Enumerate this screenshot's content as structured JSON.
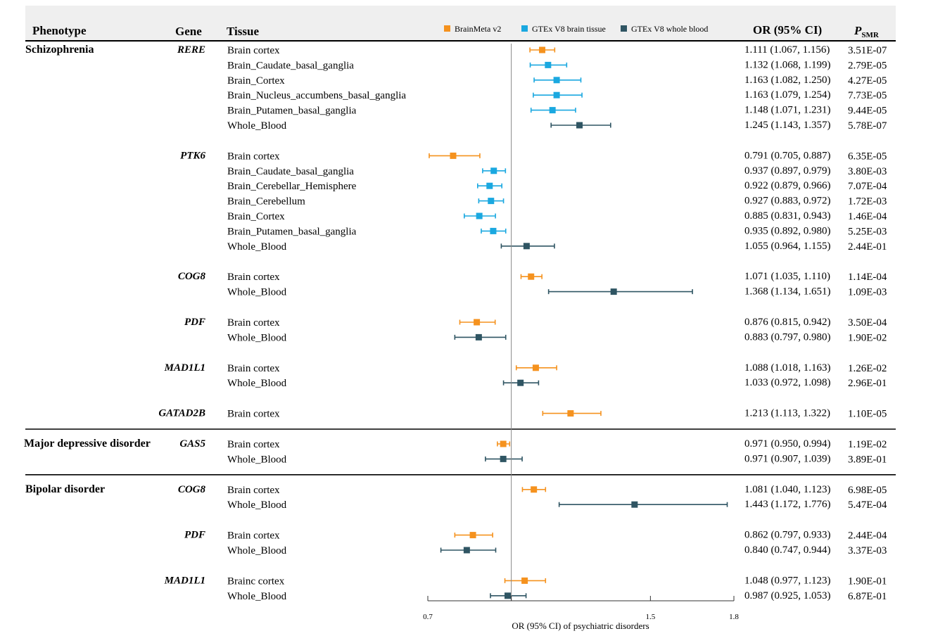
{
  "headers": {
    "phenotype": "Phenotype",
    "gene": "Gene",
    "tissue": "Tissue",
    "or": "OR (95% CI)",
    "p_main": "P",
    "p_sub": "SMR"
  },
  "legend": [
    {
      "name": "BrainMeta v2",
      "color": "#f5921e"
    },
    {
      "name": "GTEx V8 brain tissue",
      "color": "#1aa8e0"
    },
    {
      "name": "GTEx V8 whole blood",
      "color": "#2f5563"
    }
  ],
  "chart_data": {
    "type": "forest",
    "xlabel": "OR (95% CI) of psychiatric disorders",
    "xticks": [
      0.7,
      1,
      1.5,
      1.8
    ],
    "xtick_labels": [
      "0.7",
      "",
      "1.5",
      "1.8"
    ],
    "xlim": [
      0.7,
      1.8
    ],
    "reference_line": 1,
    "groups": [
      {
        "phenotype": "Schizophrenia",
        "genes": [
          {
            "gene": "RERE",
            "rows": [
              {
                "tissue": "Brain cortex",
                "source": 0,
                "or": 1.111,
                "lo": 1.067,
                "hi": 1.156,
                "or_text": "1.111 (1.067, 1.156)",
                "p": "3.51E-07"
              },
              {
                "tissue": "Brain_Caudate_basal_ganglia",
                "source": 1,
                "or": 1.132,
                "lo": 1.068,
                "hi": 1.199,
                "or_text": "1.132 (1.068, 1.199)",
                "p": "2.79E-05"
              },
              {
                "tissue": "Brain_Cortex",
                "source": 1,
                "or": 1.163,
                "lo": 1.082,
                "hi": 1.25,
                "or_text": "1.163 (1.082, 1.250)",
                "p": "4.27E-05"
              },
              {
                "tissue": "Brain_Nucleus_accumbens_basal_ganglia",
                "source": 1,
                "or": 1.163,
                "lo": 1.079,
                "hi": 1.254,
                "or_text": "1.163 (1.079, 1.254)",
                "p": "7.73E-05"
              },
              {
                "tissue": "Brain_Putamen_basal_ganglia",
                "source": 1,
                "or": 1.148,
                "lo": 1.071,
                "hi": 1.231,
                "or_text": "1.148 (1.071, 1.231)",
                "p": "9.44E-05"
              },
              {
                "tissue": "Whole_Blood",
                "source": 2,
                "or": 1.245,
                "lo": 1.143,
                "hi": 1.357,
                "or_text": "1.245 (1.143, 1.357)",
                "p": "5.78E-07"
              }
            ]
          },
          {
            "gene": "PTK6",
            "rows": [
              {
                "tissue": "Brain cortex",
                "source": 0,
                "or": 0.791,
                "lo": 0.705,
                "hi": 0.887,
                "or_text": "0.791 (0.705, 0.887)",
                "p": "6.35E-05"
              },
              {
                "tissue": "Brain_Caudate_basal_ganglia",
                "source": 1,
                "or": 0.937,
                "lo": 0.897,
                "hi": 0.979,
                "or_text": "0.937 (0.897, 0.979)",
                "p": "3.80E-03"
              },
              {
                "tissue": "Brain_Cerebellar_Hemisphere",
                "source": 1,
                "or": 0.922,
                "lo": 0.879,
                "hi": 0.966,
                "or_text": "0.922 (0.879, 0.966)",
                "p": "7.07E-04"
              },
              {
                "tissue": "Brain_Cerebellum",
                "source": 1,
                "or": 0.927,
                "lo": 0.883,
                "hi": 0.972,
                "or_text": "0.927 (0.883, 0.972)",
                "p": "1.72E-03"
              },
              {
                "tissue": "Brain_Cortex",
                "source": 1,
                "or": 0.885,
                "lo": 0.831,
                "hi": 0.943,
                "or_text": "0.885 (0.831, 0.943)",
                "p": "1.46E-04"
              },
              {
                "tissue": "Brain_Putamen_basal_ganglia",
                "source": 1,
                "or": 0.935,
                "lo": 0.892,
                "hi": 0.98,
                "or_text": "0.935 (0.892, 0.980)",
                "p": "5.25E-03"
              },
              {
                "tissue": "Whole_Blood",
                "source": 2,
                "or": 1.055,
                "lo": 0.964,
                "hi": 1.155,
                "or_text": "1.055 (0.964, 1.155)",
                "p": "2.44E-01"
              }
            ]
          },
          {
            "gene": "COG8",
            "rows": [
              {
                "tissue": "Brain cortex",
                "source": 0,
                "or": 1.071,
                "lo": 1.035,
                "hi": 1.11,
                "or_text": "1.071 (1.035, 1.110)",
                "p": "1.14E-04"
              },
              {
                "tissue": "Whole_Blood",
                "source": 2,
                "or": 1.368,
                "lo": 1.134,
                "hi": 1.651,
                "or_text": "1.368 (1.134, 1.651)",
                "p": "1.09E-03"
              }
            ]
          },
          {
            "gene": "PDF",
            "rows": [
              {
                "tissue": "Brain cortex",
                "source": 0,
                "or": 0.876,
                "lo": 0.815,
                "hi": 0.942,
                "or_text": "0.876 (0.815, 0.942)",
                "p": "3.50E-04"
              },
              {
                "tissue": "Whole_Blood",
                "source": 2,
                "or": 0.883,
                "lo": 0.797,
                "hi": 0.98,
                "or_text": "0.883 (0.797, 0.980)",
                "p": "1.90E-02"
              }
            ]
          },
          {
            "gene": "MAD1L1",
            "rows": [
              {
                "tissue": "Brain cortex",
                "source": 0,
                "or": 1.088,
                "lo": 1.018,
                "hi": 1.163,
                "or_text": "1.088 (1.018, 1.163)",
                "p": "1.26E-02"
              },
              {
                "tissue": "Whole_Blood",
                "source": 2,
                "or": 1.033,
                "lo": 0.972,
                "hi": 1.098,
                "or_text": "1.033 (0.972, 1.098)",
                "p": "2.96E-01"
              }
            ]
          },
          {
            "gene": "GATAD2B",
            "rows": [
              {
                "tissue": "Brain cortex",
                "source": 0,
                "or": 1.213,
                "lo": 1.113,
                "hi": 1.322,
                "or_text": "1.213 (1.113, 1.322)",
                "p": "1.10E-05"
              }
            ]
          }
        ]
      },
      {
        "phenotype": "Major depressive disorder",
        "genes": [
          {
            "gene": "GAS5",
            "rows": [
              {
                "tissue": "Brain cortex",
                "source": 0,
                "or": 0.971,
                "lo": 0.95,
                "hi": 0.994,
                "or_text": "0.971 (0.950, 0.994)",
                "p": "1.19E-02"
              },
              {
                "tissue": "Whole_Blood",
                "source": 2,
                "or": 0.971,
                "lo": 0.907,
                "hi": 1.039,
                "or_text": "0.971 (0.907, 1.039)",
                "p": "3.89E-01"
              }
            ]
          }
        ]
      },
      {
        "phenotype": "Bipolar disorder",
        "genes": [
          {
            "gene": "COG8",
            "rows": [
              {
                "tissue": "Brain cortex",
                "source": 0,
                "or": 1.081,
                "lo": 1.04,
                "hi": 1.123,
                "or_text": "1.081 (1.040, 1.123)",
                "p": "6.98E-05"
              },
              {
                "tissue": "Whole_Blood",
                "source": 2,
                "or": 1.443,
                "lo": 1.172,
                "hi": 1.776,
                "or_text": "1.443 (1.172, 1.776)",
                "p": "5.47E-04"
              }
            ]
          },
          {
            "gene": "PDF",
            "rows": [
              {
                "tissue": "Brain cortex",
                "source": 0,
                "or": 0.862,
                "lo": 0.797,
                "hi": 0.933,
                "or_text": "0.862 (0.797, 0.933)",
                "p": "2.44E-04"
              },
              {
                "tissue": "Whole_Blood",
                "source": 2,
                "or": 0.84,
                "lo": 0.747,
                "hi": 0.944,
                "or_text": "0.840 (0.747, 0.944)",
                "p": "3.37E-03"
              }
            ]
          },
          {
            "gene": "MAD1L1",
            "rows": [
              {
                "tissue": "Brainc cortex",
                "source": 0,
                "or": 1.048,
                "lo": 0.977,
                "hi": 1.123,
                "or_text": "1.048 (0.977, 1.123)",
                "p": "1.90E-01"
              },
              {
                "tissue": "Whole_Blood",
                "source": 2,
                "or": 0.987,
                "lo": 0.925,
                "hi": 1.053,
                "or_text": "0.987 (0.925, 1.053)",
                "p": "6.87E-01"
              }
            ]
          }
        ]
      }
    ]
  }
}
